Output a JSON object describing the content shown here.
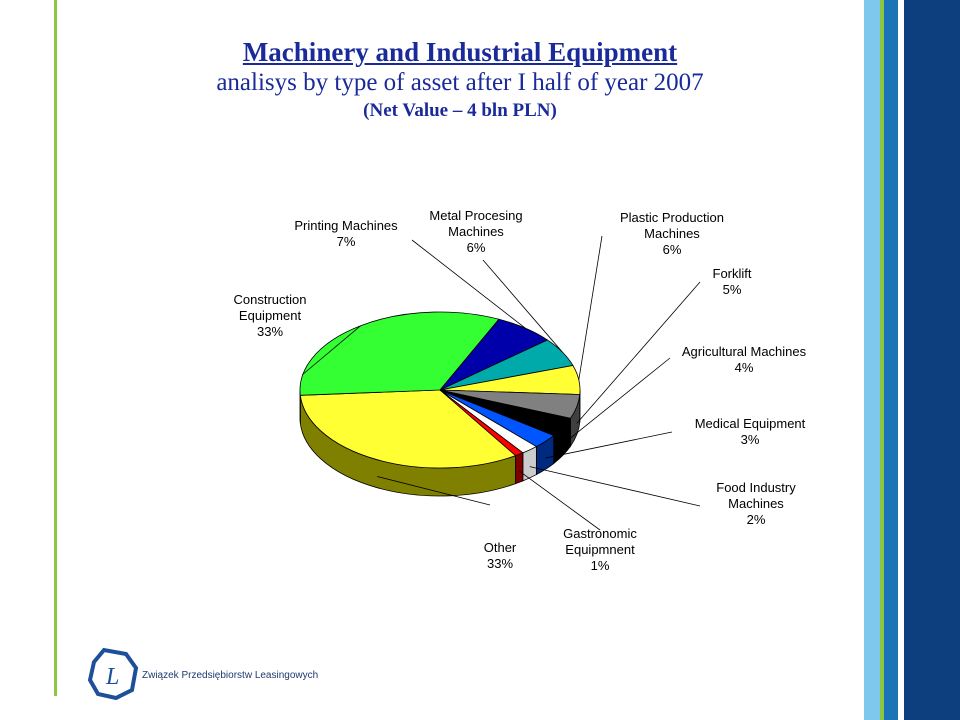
{
  "header": {
    "title": "Machinery and Industrial Equipment",
    "subtitle": "analisys by type of asset after I half of year 2007",
    "note": "(Net Value – 4 bln PLN)"
  },
  "logo": {
    "text": "Związek Przedsiębiorstw Leasingowych",
    "mark": "L"
  },
  "colors": {
    "accent_green": "#8dc63f",
    "stripe_light_blue": "#7dc8ec",
    "stripe_blue": "#1b74b8",
    "stripe_navy": "#0d3f7e",
    "title_blue": "#1a2a9a"
  },
  "chart_data": {
    "type": "pie",
    "slices": [
      {
        "label": "Other",
        "value": 33,
        "pct": "33%",
        "color": "#ffff33",
        "dark": "#808000"
      },
      {
        "label": "Construction Equipment",
        "value": 33,
        "pct": "33%",
        "color": "#33ff33",
        "dark": "#008000"
      },
      {
        "label": "Printing Machines",
        "value": 7,
        "pct": "7%",
        "color": "#0000aa",
        "dark": "#000055"
      },
      {
        "label": "Metal Procesing Machines",
        "value": 6,
        "pct": "6%",
        "color": "#00aaaa",
        "dark": "#005555"
      },
      {
        "label": "Plastic Production Machines",
        "value": 6,
        "pct": "6%",
        "color": "#ffff33",
        "dark": "#808000"
      },
      {
        "label": "Forklift",
        "value": 5,
        "pct": "5%",
        "color": "#808080",
        "dark": "#404040"
      },
      {
        "label": "Agricultural Machines",
        "value": 4,
        "pct": "4%",
        "color": "#000000",
        "dark": "#000000"
      },
      {
        "label": "Medical Equipment",
        "value": 3,
        "pct": "3%",
        "color": "#0055ff",
        "dark": "#002a80"
      },
      {
        "label": "Food Industry Machines",
        "value": 2,
        "pct": "2%",
        "color": "#ffffff",
        "dark": "#cccccc"
      },
      {
        "label": "Gastronomic Equipmnent",
        "value": 1,
        "pct": "1%",
        "color": "#ff0000",
        "dark": "#800000"
      }
    ],
    "label_lines": [
      [
        "Other",
        "33%"
      ],
      [
        "Construction",
        "Equipment",
        "33%"
      ],
      [
        "Printing Machines",
        "7%"
      ],
      [
        "Metal Procesing",
        "Machines",
        "6%"
      ],
      [
        "Plastic Production",
        "Machines",
        "6%"
      ],
      [
        "Forklift",
        "5%"
      ],
      [
        "Agricultural Machines",
        "4%"
      ],
      [
        "Medical Equipment",
        "3%"
      ],
      [
        "Food Industry",
        "Machines",
        "2%"
      ],
      [
        "Gastronomic",
        "Equipmnent",
        "1%"
      ]
    ]
  }
}
